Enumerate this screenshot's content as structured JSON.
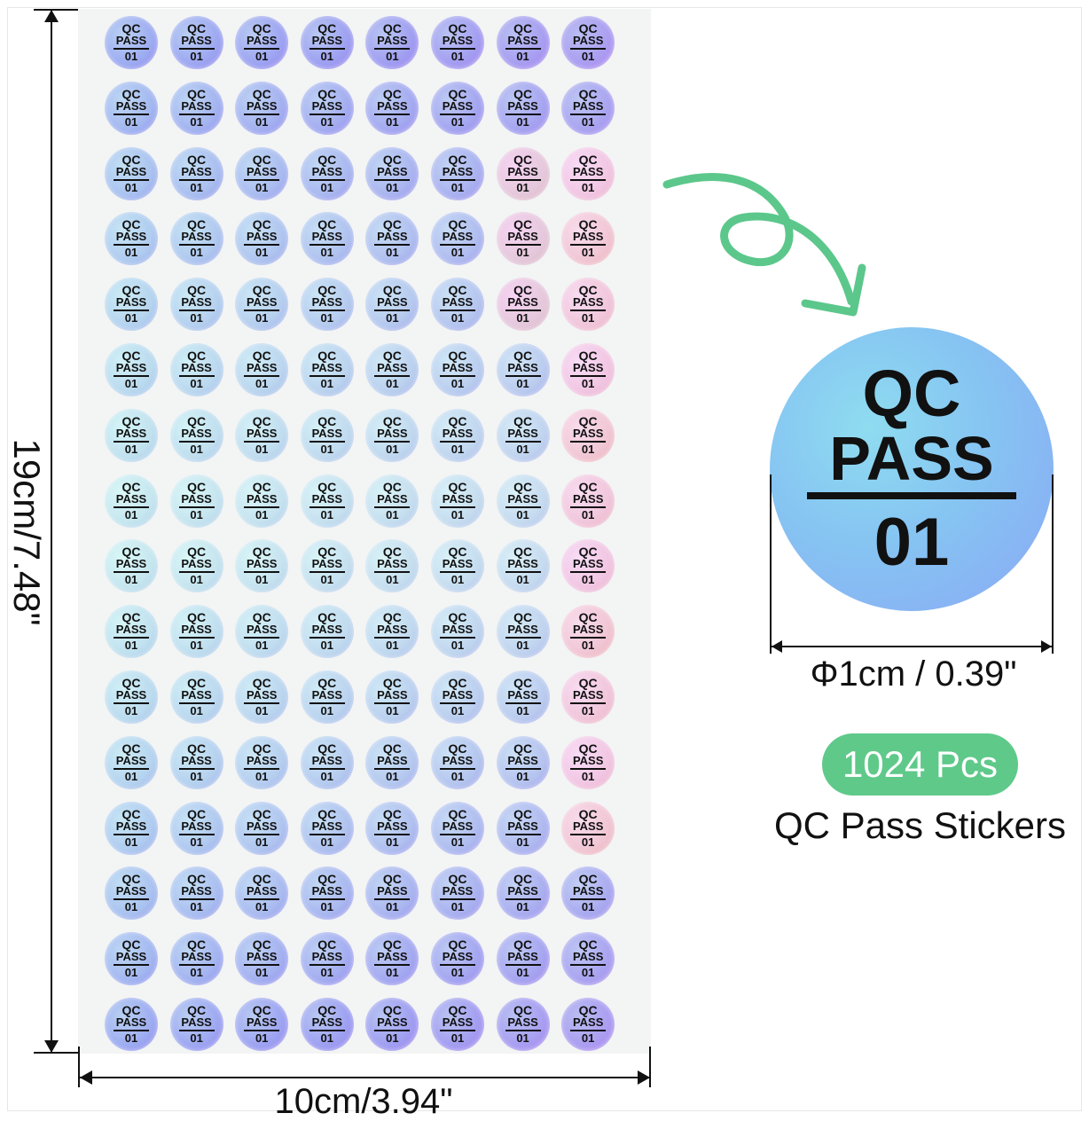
{
  "sticker": {
    "qc": "QC",
    "pass": "PASS",
    "number": "01"
  },
  "sheet": {
    "rows": 16,
    "cols": 8
  },
  "dimensions": {
    "height_label": "19cm/7.48\"",
    "width_label": "10cm/3.94\""
  },
  "detail": {
    "qc": "QC",
    "pass": "PASS",
    "number": "01",
    "size_label": "Φ1cm / 0.39\""
  },
  "badge": {
    "count": "1024 Pcs",
    "product": "QC Pass Stickers"
  },
  "colors": {
    "accent_green": "#5fc98a",
    "arrow_green": "#5cc78b",
    "hologram_blue": "#8ab4f2",
    "hologram_cyan": "#bfe9ee",
    "hologram_pink": "#f2c0d2"
  }
}
